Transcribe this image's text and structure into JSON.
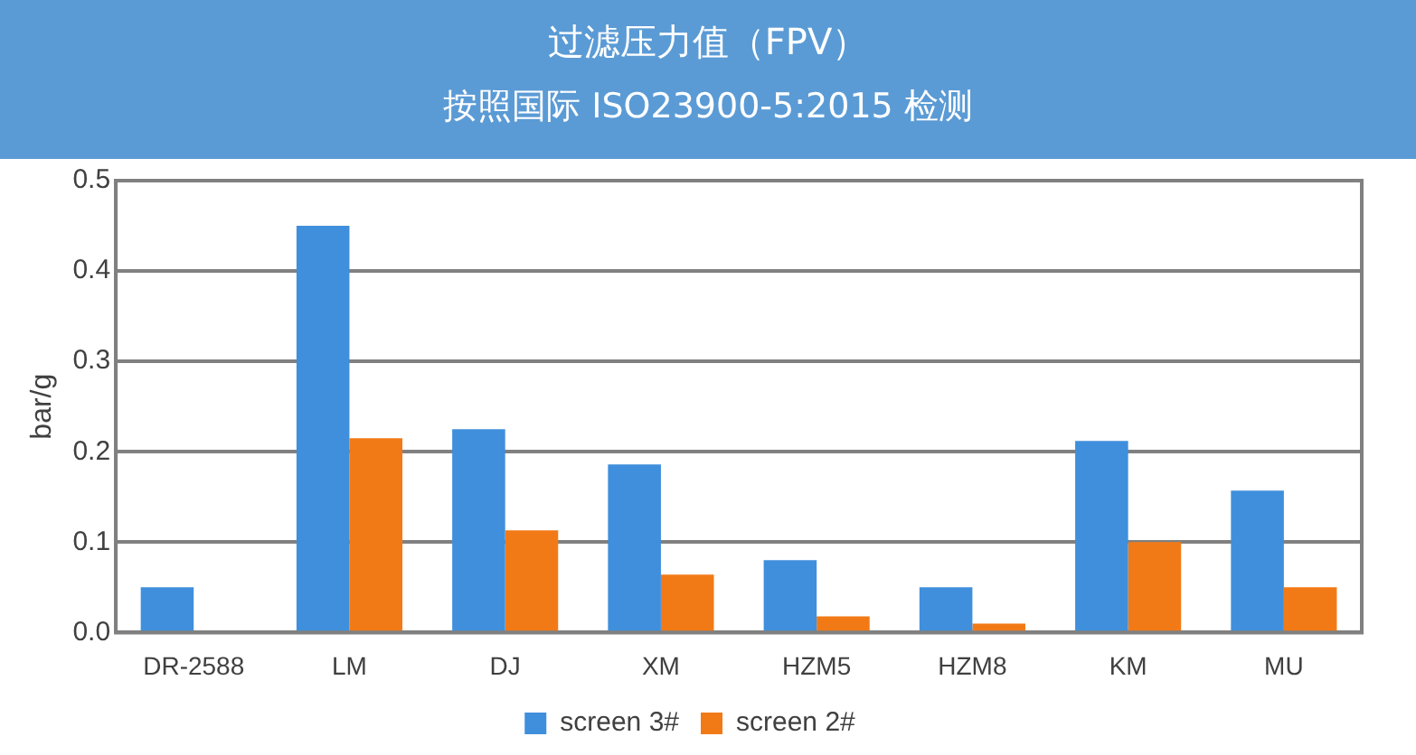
{
  "chart_data": {
    "type": "bar",
    "title": "过滤压力值（FPV）",
    "subtitle": "按照国际 ISO23900-5:2015 检测",
    "ylabel": "bar/g",
    "categories": [
      "DR-2588",
      "LM",
      "DJ",
      "XM",
      "HZM5",
      "HZM8",
      "KM",
      "MU"
    ],
    "series": [
      {
        "name": "screen 3#",
        "color": "#3f8fdc",
        "values": [
          0.05,
          0.45,
          0.225,
          0.186,
          0.08,
          0.05,
          0.212,
          0.157
        ]
      },
      {
        "name": "screen 2#",
        "color": "#f27a16",
        "values": [
          0.002,
          0.215,
          0.113,
          0.064,
          0.018,
          0.01,
          0.1,
          0.05
        ]
      }
    ],
    "ylim": [
      0,
      0.5
    ],
    "yticks": [
      {
        "value": 0,
        "label": "0.0"
      },
      {
        "value": 0.1,
        "label": "0.1"
      },
      {
        "value": 0.2,
        "label": "0.2"
      },
      {
        "value": 0.3,
        "label": "0.3"
      },
      {
        "value": 0.4,
        "label": "0.4"
      },
      {
        "value": 0.5,
        "label": "0.5"
      }
    ],
    "grid": "y",
    "legend": "bottom"
  }
}
